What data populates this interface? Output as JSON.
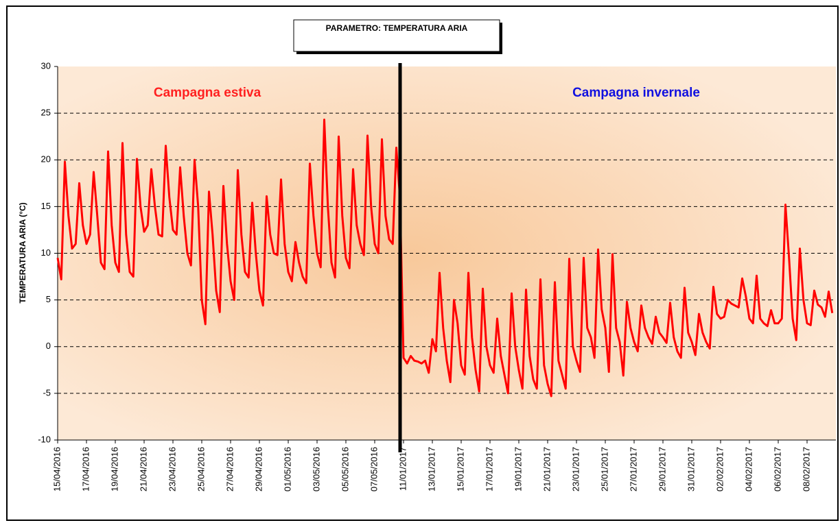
{
  "chart_data": {
    "type": "line",
    "title": "PARAMETRO: TEMPERATURA ARIA",
    "y_label": "TEMPERATURA ARIA (°C)",
    "annotations": [
      "Campagna estiva",
      "Campagna invernale"
    ],
    "categories": [
      "15/04/2016",
      null,
      null,
      null,
      null,
      null,
      null,
      null,
      "17/04/2016",
      null,
      null,
      null,
      null,
      null,
      null,
      null,
      "19/04/2016",
      null,
      null,
      null,
      null,
      null,
      null,
      null,
      "21/04/2016",
      null,
      null,
      null,
      null,
      null,
      null,
      null,
      "23/04/2016",
      null,
      null,
      null,
      null,
      null,
      null,
      null,
      "25/04/2016",
      null,
      null,
      null,
      null,
      null,
      null,
      null,
      "27/04/2016",
      null,
      null,
      null,
      null,
      null,
      null,
      null,
      "29/04/2016",
      null,
      null,
      null,
      null,
      null,
      null,
      null,
      "01/05/2016",
      null,
      null,
      null,
      null,
      null,
      null,
      null,
      "03/05/2016",
      null,
      null,
      null,
      null,
      null,
      null,
      null,
      "05/05/2016",
      null,
      null,
      null,
      null,
      null,
      null,
      null,
      "07/05/2016",
      null,
      null,
      null,
      null,
      null,
      null,
      null,
      "11/01/2017",
      null,
      null,
      null,
      null,
      null,
      null,
      null,
      "13/01/2017",
      null,
      null,
      null,
      null,
      null,
      null,
      null,
      "15/01/2017",
      null,
      null,
      null,
      null,
      null,
      null,
      null,
      "17/01/2017",
      null,
      null,
      null,
      null,
      null,
      null,
      null,
      "19/01/2017",
      null,
      null,
      null,
      null,
      null,
      null,
      null,
      "21/01/2017",
      null,
      null,
      null,
      null,
      null,
      null,
      null,
      "23/01/2017",
      null,
      null,
      null,
      null,
      null,
      null,
      null,
      "25/01/2017",
      null,
      null,
      null,
      null,
      null,
      null,
      null,
      "27/01/2017",
      null,
      null,
      null,
      null,
      null,
      null,
      null,
      "29/01/2017",
      null,
      null,
      null,
      null,
      null,
      null,
      null,
      "31/01/2017",
      null,
      null,
      null,
      null,
      null,
      null,
      null,
      "02/02/2017",
      null,
      null,
      null,
      null,
      null,
      null,
      null,
      "04/02/2017",
      null,
      null,
      null,
      null,
      null,
      null,
      null,
      "06/02/2017",
      null,
      null,
      null,
      null,
      null,
      null,
      null,
      "08/02/2017",
      null,
      null,
      null,
      null,
      null,
      null,
      null
    ],
    "series": [
      {
        "color": "#ff0000",
        "values": [
          9.5,
          7.2,
          19.8,
          14,
          10.5,
          11,
          17.5,
          13,
          11,
          12,
          18.7,
          14,
          9,
          8.3,
          20.9,
          13,
          9,
          8,
          21.8,
          12,
          8,
          7.5,
          20.1,
          15,
          12.3,
          13,
          19,
          15,
          12,
          11.8,
          21.5,
          16,
          12.5,
          12,
          19.2,
          14,
          10,
          8.7,
          20,
          15,
          5,
          2.4,
          16.6,
          12,
          6,
          3.7,
          17.2,
          11,
          7,
          5,
          18.9,
          12,
          8,
          7.4,
          15.4,
          10,
          6,
          4.4,
          16.1,
          12,
          10,
          9.8,
          17.9,
          11,
          8,
          7,
          11.2,
          9,
          7.5,
          6.8,
          19.6,
          14,
          10,
          8.5,
          24.3,
          15,
          9,
          7.4,
          22.5,
          14,
          9.5,
          8.4,
          19,
          13,
          11,
          9.8,
          22.6,
          15,
          11,
          10,
          22.2,
          14,
          11.5,
          11,
          21.3,
          16,
          -1.2,
          -1.8,
          -1,
          -1.5,
          -1.6,
          -1.8,
          -1.5,
          -2.8,
          0.8,
          -0.5,
          7.9,
          2,
          -1.5,
          -3.8,
          5,
          2.5,
          -2,
          -3,
          7.9,
          1,
          -2.5,
          -4.8,
          6.2,
          0,
          -2,
          -2.8,
          3,
          -1,
          -3,
          -5,
          5.7,
          0,
          -2.5,
          -4.5,
          6.1,
          -1,
          -3.5,
          -4.5,
          7.2,
          -2,
          -4,
          -5.3,
          6.9,
          -1.5,
          -3,
          -4.5,
          9.4,
          0,
          -1.5,
          -2.7,
          9.5,
          2,
          1,
          -1.2,
          10.4,
          4,
          2,
          -2.7,
          9.9,
          2,
          0.5,
          -3.1,
          4.8,
          2,
          0.5,
          -0.5,
          4.4,
          2,
          1,
          0.3,
          3.2,
          1.5,
          1,
          0.4,
          4.7,
          1,
          -0.5,
          -1.2,
          6.3,
          1.5,
          0.5,
          -0.9,
          3.5,
          1.5,
          0.5,
          -0.2,
          6.4,
          3.5,
          3,
          3.2,
          5,
          4.6,
          4.4,
          4.2,
          7.3,
          5.4,
          3,
          2.5,
          7.6,
          3,
          2.5,
          2.2,
          3.9,
          2.5,
          2.5,
          3,
          15.2,
          9.5,
          3,
          0.7,
          10.5,
          5,
          2.5,
          2.3,
          6,
          4.5,
          4.2,
          3.2,
          5.9,
          3.6
        ]
      }
    ],
    "ylim": [
      -10,
      30
    ],
    "yticks": [
      -10,
      -5,
      0,
      5,
      10,
      15,
      20,
      25,
      30
    ],
    "grid": true
  }
}
